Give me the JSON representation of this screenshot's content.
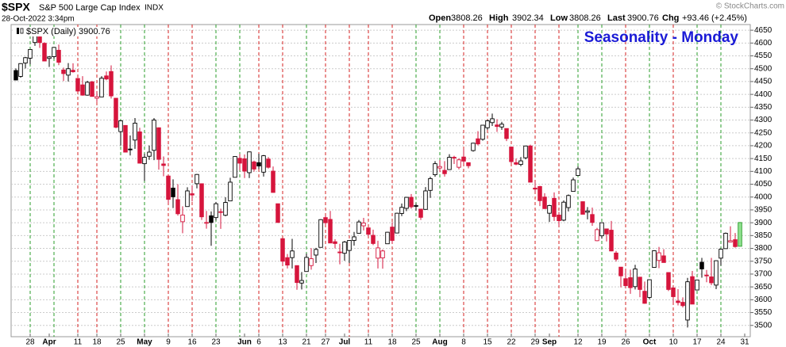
{
  "header": {
    "symbol": "$SPX",
    "name": "S&P 500 Large Cap Index",
    "exchange": "INDX",
    "timestamp": "28-Oct-2022 3:34pm",
    "quote": [
      {
        "label": "Open",
        "value": "3808.26"
      },
      {
        "label": "High",
        "value": "3902.34"
      },
      {
        "label": "Low",
        "value": "3808.26"
      },
      {
        "label": "Last",
        "value": "3900.76"
      },
      {
        "label": "Chg",
        "value": "+93.46 (+2.45%)"
      }
    ],
    "copyright": "© StockCharts.com"
  },
  "chart_data": {
    "type": "candlestick",
    "title": "Seasonality - Monday",
    "legend": "$SPX (Daily) 3900.76",
    "up_color": "#000000",
    "down_color": "#d6153c",
    "current_color": "#8fe08f",
    "title_color": "#1a1ad6",
    "grid": true,
    "x": [
      "2022-03-23",
      "2022-03-24",
      "2022-03-25",
      "2022-03-28",
      "2022-03-29",
      "2022-03-30",
      "2022-03-31",
      "2022-04-01",
      "2022-04-04",
      "2022-04-05",
      "2022-04-06",
      "2022-04-07",
      "2022-04-08",
      "2022-04-11",
      "2022-04-12",
      "2022-04-13",
      "2022-04-14",
      "2022-04-18",
      "2022-04-19",
      "2022-04-20",
      "2022-04-21",
      "2022-04-22",
      "2022-04-25",
      "2022-04-26",
      "2022-04-27",
      "2022-04-28",
      "2022-04-29",
      "2022-05-02",
      "2022-05-03",
      "2022-05-04",
      "2022-05-05",
      "2022-05-06",
      "2022-05-09",
      "2022-05-10",
      "2022-05-11",
      "2022-05-12",
      "2022-05-13",
      "2022-05-16",
      "2022-05-17",
      "2022-05-18",
      "2022-05-19",
      "2022-05-20",
      "2022-05-23",
      "2022-05-24",
      "2022-05-25",
      "2022-05-26",
      "2022-05-27",
      "2022-05-31",
      "2022-06-01",
      "2022-06-02",
      "2022-06-03",
      "2022-06-06",
      "2022-06-07",
      "2022-06-08",
      "2022-06-09",
      "2022-06-10",
      "2022-06-13",
      "2022-06-14",
      "2022-06-15",
      "2022-06-16",
      "2022-06-17",
      "2022-06-21",
      "2022-06-22",
      "2022-06-23",
      "2022-06-24",
      "2022-06-27",
      "2022-06-28",
      "2022-06-29",
      "2022-06-30",
      "2022-07-01",
      "2022-07-05",
      "2022-07-06",
      "2022-07-07",
      "2022-07-08",
      "2022-07-11",
      "2022-07-12",
      "2022-07-13",
      "2022-07-14",
      "2022-07-15",
      "2022-07-18",
      "2022-07-19",
      "2022-07-20",
      "2022-07-21",
      "2022-07-22",
      "2022-07-25",
      "2022-07-26",
      "2022-07-27",
      "2022-07-28",
      "2022-07-29",
      "2022-08-01",
      "2022-08-02",
      "2022-08-03",
      "2022-08-04",
      "2022-08-05",
      "2022-08-08",
      "2022-08-09",
      "2022-08-10",
      "2022-08-11",
      "2022-08-12",
      "2022-08-15",
      "2022-08-16",
      "2022-08-17",
      "2022-08-18",
      "2022-08-19",
      "2022-08-22",
      "2022-08-23",
      "2022-08-24",
      "2022-08-25",
      "2022-08-26",
      "2022-08-29",
      "2022-08-30",
      "2022-08-31",
      "2022-09-01",
      "2022-09-02",
      "2022-09-06",
      "2022-09-07",
      "2022-09-08",
      "2022-09-09",
      "2022-09-12",
      "2022-09-13",
      "2022-09-14",
      "2022-09-15",
      "2022-09-16",
      "2022-09-19",
      "2022-09-20",
      "2022-09-21",
      "2022-09-22",
      "2022-09-23",
      "2022-09-26",
      "2022-09-27",
      "2022-09-28",
      "2022-09-29",
      "2022-09-30",
      "2022-10-03",
      "2022-10-04",
      "2022-10-05",
      "2022-10-06",
      "2022-10-07",
      "2022-10-10",
      "2022-10-11",
      "2022-10-12",
      "2022-10-13",
      "2022-10-14",
      "2022-10-17",
      "2022-10-18",
      "2022-10-19",
      "2022-10-20",
      "2022-10-21",
      "2022-10-24",
      "2022-10-25",
      "2022-10-26",
      "2022-10-27",
      "2022-10-28"
    ],
    "open": [
      4493,
      4470,
      4522,
      4541,
      4602,
      4624,
      4599,
      4540,
      4547,
      4572,
      4495,
      4475,
      4494,
      4462,
      4437,
      4397,
      4449,
      4385,
      4390,
      4472,
      4489,
      4385,
      4255,
      4279,
      4187,
      4222,
      4254,
      4130,
      4159,
      4182,
      4270,
      4129,
      4082,
      4035,
      3990,
      3904,
      3963,
      4013,
      4052,
      4052,
      3900,
      3927,
      3920,
      3943,
      3929,
      3985,
      4077,
      4151,
      4149,
      4095,
      4137,
      4134,
      4097,
      4148,
      4101,
      3974,
      3838,
      3764,
      3764,
      3733,
      3665,
      3710,
      3733,
      3774,
      3804,
      3920,
      3913,
      3826,
      3786,
      3781,
      3792,
      3831,
      3859,
      3888,
      3880,
      3851,
      3762,
      3763,
      3818,
      3883,
      3860,
      3936,
      3956,
      3999,
      3966,
      3953,
      3952,
      4026,
      4087,
      4113,
      4104,
      4107,
      4155,
      4116,
      4156,
      4134,
      4181,
      4227,
      4225,
      4270,
      4290,
      4281,
      4273,
      4267,
      4195,
      4134,
      4127,
      4153,
      4199,
      4035,
      4041,
      4000,
      3937,
      3995,
      3930,
      3910,
      3959,
      4022,
      4084,
      3982,
      3941,
      3932,
      3830,
      3849,
      3876,
      3871,
      3782,
      3727,
      3682,
      3686,
      3651,
      3688,
      3633,
      3609,
      3726,
      3753,
      3771,
      3706,
      3646,
      3595,
      3590,
      3521,
      3690,
      3638,
      3746,
      3696,
      3689,
      3657,
      3762,
      3799,
      3825,
      3834,
      3808.26
    ],
    "high": [
      4501,
      4521,
      4546,
      4575,
      4637,
      4627,
      4603,
      4549,
      4583,
      4594,
      4504,
      4522,
      4521,
      4464,
      4471,
      4453,
      4452,
      4411,
      4471,
      4489,
      4513,
      4386,
      4299,
      4279,
      4240,
      4308,
      4270,
      4169,
      4201,
      4308,
      4271,
      4158,
      4082,
      4069,
      4050,
      3964,
      4038,
      4046,
      4090,
      4052,
      3946,
      3944,
      3981,
      3955,
      3999,
      4075,
      4158,
      4168,
      4166,
      4177,
      4142,
      4169,
      4164,
      4156,
      4119,
      3974,
      3838,
      3778,
      3837,
      3733,
      3708,
      3780,
      3801,
      3802,
      3914,
      3928,
      3946,
      3836,
      3818,
      3829,
      3832,
      3864,
      3911,
      3919,
      3880,
      3873,
      3830,
      3796,
      3864,
      3902,
      3939,
      3975,
      4000,
      4012,
      3975,
      3954,
      4039,
      4079,
      4140,
      4144,
      4140,
      4167,
      4161,
      4151,
      4187,
      4134,
      4211,
      4257,
      4280,
      4301,
      4325,
      4303,
      4293,
      4267,
      4196,
      4150,
      4156,
      4200,
      4204,
      4062,
      4044,
      4015,
      3970,
      4018,
      3942,
      3987,
      4010,
      4076,
      4119,
      3983,
      3961,
      3959,
      3880,
      3900,
      3876,
      3907,
      3790,
      3727,
      3715,
      3717,
      3736,
      3688,
      3671,
      3679,
      3793,
      3806,
      3797,
      3706,
      3652,
      3641,
      3609,
      3685,
      3712,
      3677,
      3763,
      3716,
      3763,
      3753,
      3800,
      3862,
      3886,
      3860,
      3902.34
    ],
    "low": [
      4455,
      4465,
      4501,
      4517,
      4589,
      4581,
      4530,
      4507,
      4539,
      4514,
      4452,
      4450,
      4485,
      4408,
      4395,
      4395,
      4392,
      4370,
      4390,
      4455,
      4384,
      4268,
      4200,
      4175,
      4162,
      4188,
      4131,
      4063,
      4145,
      4144,
      4107,
      4081,
      3975,
      3957,
      3928,
      3859,
      3963,
      3983,
      4034,
      3911,
      3877,
      3810,
      3909,
      3876,
      3925,
      3985,
      4077,
      4104,
      4074,
      4074,
      4099,
      4109,
      4080,
      4111,
      4017,
      3900,
      3735,
      3722,
      3722,
      3639,
      3640,
      3710,
      3717,
      3743,
      3804,
      3889,
      3820,
      3800,
      3738,
      3752,
      3743,
      3811,
      3859,
      3870,
      3847,
      3813,
      3722,
      3721,
      3818,
      3819,
      3860,
      3926,
      3945,
      3955,
      3947,
      3911,
      3951,
      3997,
      4079,
      4097,
      4080,
      4107,
      4129,
      4108,
      4128,
      4112,
      4177,
      4201,
      4220,
      4262,
      4277,
      4254,
      4262,
      4218,
      4130,
      4124,
      4120,
      4147,
      4057,
      4017,
      3965,
      3954,
      3903,
      3907,
      3886,
      3906,
      3944,
      4022,
      4084,
      3933,
      3913,
      3888,
      3828,
      3838,
      3827,
      3789,
      3749,
      3648,
      3644,
      3623,
      3640,
      3610,
      3584,
      3603,
      3726,
      3723,
      3745,
      3634,
      3588,
      3578,
      3570,
      3492,
      3584,
      3638,
      3686,
      3668,
      3657,
      3641,
      3733,
      3799,
      3824,
      3803,
      3808.26
    ],
    "close": [
      4456,
      4520,
      4543,
      4575,
      4632,
      4602,
      4530,
      4546,
      4583,
      4525,
      4481,
      4500,
      4488,
      4413,
      4397,
      4447,
      4392,
      4391,
      4463,
      4460,
      4394,
      4272,
      4297,
      4175,
      4184,
      4288,
      4132,
      4155,
      4175,
      4300,
      4147,
      4123,
      3991,
      4001,
      3935,
      3930,
      4024,
      4008,
      4088,
      3923,
      3901,
      3901,
      3974,
      3941,
      3979,
      4058,
      4158,
      4132,
      4101,
      4176,
      4109,
      4121,
      4161,
      4116,
      4018,
      3901,
      3750,
      3735,
      3790,
      3667,
      3675,
      3765,
      3760,
      3796,
      3912,
      3900,
      3821,
      3819,
      3785,
      3825,
      3831,
      3845,
      3903,
      3899,
      3855,
      3819,
      3802,
      3790,
      3863,
      3831,
      3937,
      3960,
      3999,
      3962,
      3967,
      3921,
      4024,
      4072,
      4130,
      4119,
      4091,
      4155,
      4152,
      4145,
      4140,
      4122,
      4210,
      4207,
      4280,
      4297,
      4305,
      4275,
      4284,
      4228,
      4138,
      4128,
      4141,
      4199,
      4058,
      4031,
      3986,
      3955,
      3967,
      3924,
      3908,
      3980,
      4006,
      4067,
      4110,
      3933,
      3946,
      3901,
      3873,
      3900,
      3856,
      3790,
      3758,
      3693,
      3655,
      3647,
      3720,
      3640,
      3586,
      3678,
      3791,
      3783,
      3745,
      3640,
      3612,
      3589,
      3577,
      3670,
      3583,
      3677,
      3720,
      3695,
      3666,
      3752,
      3797,
      3859,
      3830,
      3807,
      3900.76
    ],
    "ylim": [
      3456,
      4672
    ],
    "yticks": [
      3500,
      3550,
      3600,
      3650,
      3700,
      3750,
      3800,
      3850,
      3900,
      3950,
      4000,
      4050,
      4100,
      4150,
      4200,
      4250,
      4300,
      4350,
      4400,
      4450,
      4500,
      4550,
      4600,
      4650
    ],
    "xticks": [
      {
        "value": "2022-03-28",
        "label": "28"
      },
      {
        "value": "2022-04-01",
        "label": "Apr"
      },
      {
        "value": "2022-04-11",
        "label": "11"
      },
      {
        "value": "2022-04-18",
        "label": "18"
      },
      {
        "value": "2022-04-25",
        "label": "25"
      },
      {
        "value": "2022-05-02",
        "label": "May"
      },
      {
        "value": "2022-05-09",
        "label": "9"
      },
      {
        "value": "2022-05-16",
        "label": "16"
      },
      {
        "value": "2022-05-23",
        "label": "23"
      },
      {
        "value": "2022-06-01",
        "label": "Jun"
      },
      {
        "value": "2022-06-06",
        "label": "6"
      },
      {
        "value": "2022-06-13",
        "label": "13"
      },
      {
        "value": "2022-06-21",
        "label": "21"
      },
      {
        "value": "2022-06-27",
        "label": "27"
      },
      {
        "value": "2022-07-01",
        "label": "Jul"
      },
      {
        "value": "2022-07-11",
        "label": "11"
      },
      {
        "value": "2022-07-18",
        "label": "18"
      },
      {
        "value": "2022-07-25",
        "label": "25"
      },
      {
        "value": "2022-08-01",
        "label": "Aug"
      },
      {
        "value": "2022-08-08",
        "label": "8"
      },
      {
        "value": "2022-08-15",
        "label": "15"
      },
      {
        "value": "2022-08-22",
        "label": "22"
      },
      {
        "value": "2022-08-29",
        "label": "29"
      },
      {
        "value": "2022-09-01",
        "label": "Sep"
      },
      {
        "value": "2022-09-12",
        "label": "12"
      },
      {
        "value": "2022-09-19",
        "label": "19"
      },
      {
        "value": "2022-09-26",
        "label": "26"
      },
      {
        "value": "2022-10-03",
        "label": "Oct"
      },
      {
        "value": "2022-10-10",
        "label": "10"
      },
      {
        "value": "2022-10-17",
        "label": "17"
      },
      {
        "value": "2022-10-24",
        "label": "24"
      },
      {
        "value": "2022-10-31",
        "label": "31"
      }
    ],
    "monday_lines": [
      {
        "x": "2022-03-28",
        "color": "#2a9d2a"
      },
      {
        "x": "2022-04-04",
        "color": "#2a9d2a"
      },
      {
        "x": "2022-04-11",
        "color": "#d62020"
      },
      {
        "x": "2022-04-18",
        "color": "#d62020"
      },
      {
        "x": "2022-04-25",
        "color": "#2a9d2a"
      },
      {
        "x": "2022-05-02",
        "color": "#2a9d2a"
      },
      {
        "x": "2022-05-09",
        "color": "#d62020"
      },
      {
        "x": "2022-05-16",
        "color": "#d62020"
      },
      {
        "x": "2022-05-23",
        "color": "#2a9d2a"
      },
      {
        "x": "2022-05-31",
        "color": "#2a9d2a"
      },
      {
        "x": "2022-06-06",
        "color": "#d62020"
      },
      {
        "x": "2022-06-13",
        "color": "#d62020"
      },
      {
        "x": "2022-06-21",
        "color": "#2a9d2a"
      },
      {
        "x": "2022-06-27",
        "color": "#d62020"
      },
      {
        "x": "2022-07-05",
        "color": "#d62020"
      },
      {
        "x": "2022-07-11",
        "color": "#d62020"
      },
      {
        "x": "2022-07-18",
        "color": "#d62020"
      },
      {
        "x": "2022-07-25",
        "color": "#2a9d2a"
      },
      {
        "x": "2022-08-01",
        "color": "#2a9d2a"
      },
      {
        "x": "2022-08-08",
        "color": "#d62020"
      },
      {
        "x": "2022-08-15",
        "color": "#d62020"
      },
      {
        "x": "2022-08-22",
        "color": "#d62020"
      },
      {
        "x": "2022-08-29",
        "color": "#d62020"
      },
      {
        "x": "2022-09-06",
        "color": "#d62020"
      },
      {
        "x": "2022-09-12",
        "color": "#2a9d2a"
      },
      {
        "x": "2022-09-19",
        "color": "#2a9d2a"
      },
      {
        "x": "2022-09-26",
        "color": "#d62020"
      },
      {
        "x": "2022-10-03",
        "color": "#2a9d2a"
      },
      {
        "x": "2022-10-10",
        "color": "#d62020"
      },
      {
        "x": "2022-10-17",
        "color": "#2a9d2a"
      },
      {
        "x": "2022-10-24",
        "color": "#2a9d2a"
      }
    ]
  }
}
